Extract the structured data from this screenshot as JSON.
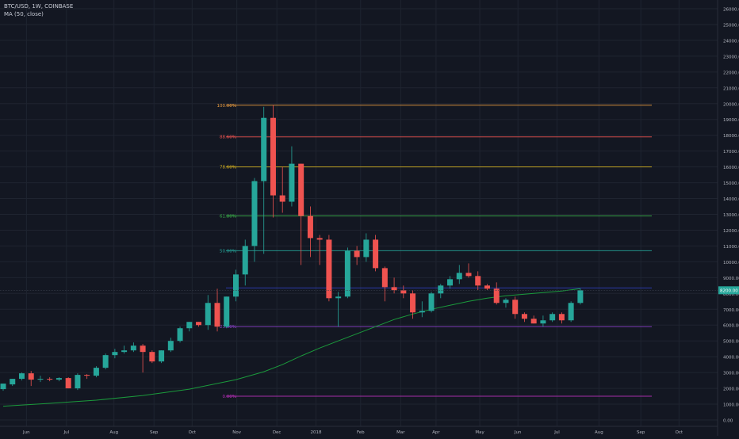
{
  "header": {
    "symbol": "BTC/USD, 1W, COINBASE",
    "indicator": "MA (50, close)"
  },
  "chart_data": {
    "type": "candlestick",
    "ylim": [
      0,
      27000
    ],
    "y_ticks": [
      0,
      1000,
      2000,
      3000,
      4000,
      5000,
      6000,
      7000,
      8000,
      9000,
      10000,
      11000,
      12000,
      13000,
      14000,
      15000,
      16000,
      17000,
      18000,
      19000,
      20000,
      21000,
      22000,
      23000,
      24000,
      25000,
      26000
    ],
    "y_tick_labels": [
      "0.00",
      "1000.00",
      "2000.00",
      "3000.00",
      "4000.00",
      "5000.00",
      "6000.00",
      "7000.00",
      "8000.00",
      "9000.00",
      "10000.00",
      "11000.00",
      "12000.00",
      "13000.00",
      "14000.00",
      "15000.00",
      "16000.00",
      "17000.00",
      "18000.00",
      "19000.00",
      "20000.00",
      "21000.00",
      "22000.00",
      "23000.00",
      "24000.00",
      "25000.00",
      "26000.00"
    ],
    "x_labels": [
      "Jun",
      "Jul",
      "Aug",
      "Sep",
      "Oct",
      "Nov",
      "Dec",
      "2018",
      "Feb",
      "Mar",
      "Apr",
      "May",
      "Jun",
      "Jul",
      "Aug",
      "Sep",
      "Oct"
    ],
    "last_price_label": "8200.00",
    "grid": true,
    "colors": {
      "up": "#26a69a",
      "down": "#ef5350",
      "ma": "#1b9a3c",
      "background": "#131722",
      "grid": "#1f2430",
      "axis_text": "#b2b5be"
    },
    "fib_levels": [
      {
        "label": "100.00%",
        "value": 19900,
        "color": "#f0a040"
      },
      {
        "label": "88.60%",
        "value": 17900,
        "color": "#ef5350"
      },
      {
        "label": "78.60%",
        "value": 16000,
        "color": "#d4b020"
      },
      {
        "label": "61.80%",
        "value": 12900,
        "color": "#3bb54a"
      },
      {
        "label": "50.00%",
        "value": 10700,
        "color": "#26a69a"
      },
      {
        "label": "",
        "value": 8350,
        "color": "#3040c0"
      },
      {
        "label": "23.60%",
        "value": 5900,
        "color": "#8a40c8"
      },
      {
        "label": "0.00%",
        "value": 1500,
        "color": "#c030c0"
      }
    ],
    "candles": [
      {
        "o": 1950,
        "h": 2100,
        "l": 1850,
        "c": 2300
      },
      {
        "o": 2250,
        "h": 2500,
        "l": 2150,
        "c": 2600
      },
      {
        "o": 2600,
        "h": 3000,
        "l": 2500,
        "c": 2950
      },
      {
        "o": 2950,
        "h": 3100,
        "l": 2150,
        "c": 2550
      },
      {
        "o": 2550,
        "h": 2800,
        "l": 2400,
        "c": 2600
      },
      {
        "o": 2600,
        "h": 2700,
        "l": 2450,
        "c": 2550
      },
      {
        "o": 2550,
        "h": 2700,
        "l": 2450,
        "c": 2650
      },
      {
        "o": 2650,
        "h": 2700,
        "l": 2250,
        "c": 2000
      },
      {
        "o": 2000,
        "h": 2950,
        "l": 1900,
        "c": 2850
      },
      {
        "o": 2850,
        "h": 2900,
        "l": 2600,
        "c": 2800
      },
      {
        "o": 2800,
        "h": 3400,
        "l": 2700,
        "c": 3300
      },
      {
        "o": 3300,
        "h": 4200,
        "l": 3200,
        "c": 4100
      },
      {
        "o": 4100,
        "h": 4500,
        "l": 3900,
        "c": 4300
      },
      {
        "o": 4300,
        "h": 4700,
        "l": 4200,
        "c": 4400
      },
      {
        "o": 4400,
        "h": 4900,
        "l": 4300,
        "c": 4700
      },
      {
        "o": 4700,
        "h": 4800,
        "l": 3000,
        "c": 4300
      },
      {
        "o": 4300,
        "h": 4400,
        "l": 3600,
        "c": 3700
      },
      {
        "o": 3700,
        "h": 4400,
        "l": 3600,
        "c": 4400
      },
      {
        "o": 4400,
        "h": 5200,
        "l": 4300,
        "c": 5000
      },
      {
        "o": 5000,
        "h": 5900,
        "l": 4900,
        "c": 5800
      },
      {
        "o": 5800,
        "h": 6200,
        "l": 5600,
        "c": 6200
      },
      {
        "o": 6200,
        "h": 6200,
        "l": 5900,
        "c": 6000
      },
      {
        "o": 6000,
        "h": 7900,
        "l": 5700,
        "c": 7400
      },
      {
        "o": 7400,
        "h": 8300,
        "l": 5600,
        "c": 5900
      },
      {
        "o": 5900,
        "h": 7800,
        "l": 5800,
        "c": 7800
      },
      {
        "o": 7800,
        "h": 9500,
        "l": 7500,
        "c": 9200
      },
      {
        "o": 9200,
        "h": 11400,
        "l": 8500,
        "c": 11000
      },
      {
        "o": 11000,
        "h": 15300,
        "l": 10000,
        "c": 15100
      },
      {
        "o": 15100,
        "h": 19800,
        "l": 10500,
        "c": 19100
      },
      {
        "o": 19100,
        "h": 19900,
        "l": 12800,
        "c": 14200
      },
      {
        "o": 14200,
        "h": 16000,
        "l": 13100,
        "c": 13800
      },
      {
        "o": 13800,
        "h": 17300,
        "l": 13500,
        "c": 16200
      },
      {
        "o": 16200,
        "h": 16200,
        "l": 9800,
        "c": 12900
      },
      {
        "o": 12900,
        "h": 13500,
        "l": 10300,
        "c": 11500
      },
      {
        "o": 11500,
        "h": 11700,
        "l": 9800,
        "c": 11400
      },
      {
        "o": 11400,
        "h": 11700,
        "l": 7500,
        "c": 7700
      },
      {
        "o": 7700,
        "h": 8100,
        "l": 5900,
        "c": 7800
      },
      {
        "o": 7800,
        "h": 10900,
        "l": 7700,
        "c": 10700
      },
      {
        "o": 10700,
        "h": 11000,
        "l": 9800,
        "c": 10300
      },
      {
        "o": 10300,
        "h": 11800,
        "l": 10000,
        "c": 11400
      },
      {
        "o": 11400,
        "h": 11700,
        "l": 9400,
        "c": 9600
      },
      {
        "o": 9600,
        "h": 9700,
        "l": 7500,
        "c": 8400
      },
      {
        "o": 8400,
        "h": 9000,
        "l": 8000,
        "c": 8200
      },
      {
        "o": 8200,
        "h": 8500,
        "l": 7700,
        "c": 8000
      },
      {
        "o": 8000,
        "h": 8200,
        "l": 6400,
        "c": 6800
      },
      {
        "o": 6800,
        "h": 7500,
        "l": 6500,
        "c": 6900
      },
      {
        "o": 6900,
        "h": 8100,
        "l": 6800,
        "c": 8000
      },
      {
        "o": 8000,
        "h": 8600,
        "l": 7700,
        "c": 8500
      },
      {
        "o": 8500,
        "h": 9100,
        "l": 8300,
        "c": 8900
      },
      {
        "o": 8900,
        "h": 9800,
        "l": 8600,
        "c": 9300
      },
      {
        "o": 9300,
        "h": 9900,
        "l": 9000,
        "c": 9100
      },
      {
        "o": 9100,
        "h": 9400,
        "l": 8200,
        "c": 8500
      },
      {
        "o": 8500,
        "h": 8600,
        "l": 8200,
        "c": 8300
      },
      {
        "o": 8300,
        "h": 8700,
        "l": 7300,
        "c": 7400
      },
      {
        "o": 7400,
        "h": 7700,
        "l": 7100,
        "c": 7600
      },
      {
        "o": 7600,
        "h": 7800,
        "l": 6400,
        "c": 6700
      },
      {
        "o": 6700,
        "h": 6800,
        "l": 6200,
        "c": 6400
      },
      {
        "o": 6400,
        "h": 6600,
        "l": 6100,
        "c": 6100
      },
      {
        "o": 6100,
        "h": 6600,
        "l": 5900,
        "c": 6300
      },
      {
        "o": 6300,
        "h": 6800,
        "l": 6200,
        "c": 6700
      },
      {
        "o": 6700,
        "h": 6800,
        "l": 6100,
        "c": 6300
      },
      {
        "o": 6300,
        "h": 7500,
        "l": 6200,
        "c": 7400
      },
      {
        "o": 7400,
        "h": 8300,
        "l": 7300,
        "c": 8200
      }
    ],
    "ma": [
      {
        "i": 0,
        "v": 870
      },
      {
        "i": 5,
        "v": 1050
      },
      {
        "i": 10,
        "v": 1250
      },
      {
        "i": 15,
        "v": 1550
      },
      {
        "i": 20,
        "v": 1950
      },
      {
        "i": 25,
        "v": 2550
      },
      {
        "i": 28,
        "v": 3050
      },
      {
        "i": 30,
        "v": 3500
      },
      {
        "i": 32,
        "v": 4050
      },
      {
        "i": 34,
        "v": 4550
      },
      {
        "i": 36,
        "v": 5000
      },
      {
        "i": 38,
        "v": 5450
      },
      {
        "i": 40,
        "v": 5900
      },
      {
        "i": 42,
        "v": 6350
      },
      {
        "i": 44,
        "v": 6700
      },
      {
        "i": 46,
        "v": 7000
      },
      {
        "i": 48,
        "v": 7250
      },
      {
        "i": 50,
        "v": 7500
      },
      {
        "i": 52,
        "v": 7700
      },
      {
        "i": 54,
        "v": 7850
      },
      {
        "i": 56,
        "v": 7950
      },
      {
        "i": 58,
        "v": 8050
      },
      {
        "i": 60,
        "v": 8150
      },
      {
        "i": 62,
        "v": 8300
      }
    ]
  }
}
